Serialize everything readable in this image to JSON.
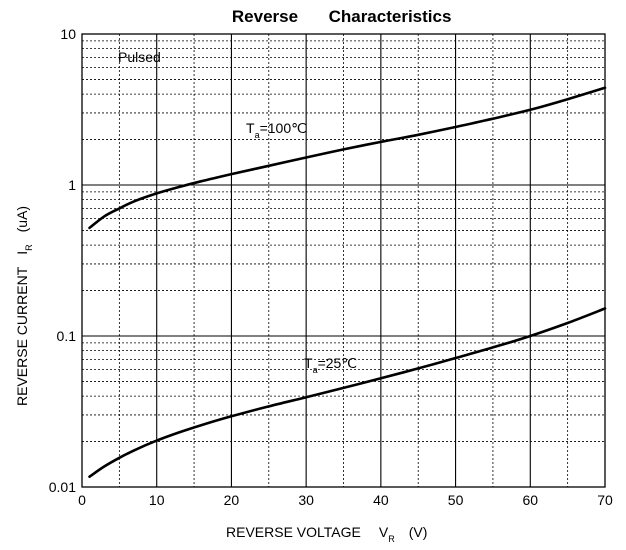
{
  "chart_data": {
    "type": "line",
    "title_left": "Reverse",
    "title_right": "Characteristics",
    "xlabel": "REVERSE VOLTAGE",
    "xlabel_symbol": "V",
    "xlabel_sub": "R",
    "xlabel_unit": "(V)",
    "ylabel": "REVERSE CURRENT",
    "ylabel_symbol": "I",
    "ylabel_sub": "R",
    "ylabel_unit": "(uA)",
    "xlim": [
      0,
      70
    ],
    "ylim": [
      0.01,
      10
    ],
    "y_scale": "log",
    "grid": true,
    "x_ticks": [
      "0",
      "10",
      "20",
      "30",
      "40",
      "50",
      "60",
      "70"
    ],
    "y_ticks": [
      "0.01",
      "0.1",
      "1",
      "10"
    ],
    "annotation": "Pulsed",
    "series": [
      {
        "label_main": "T",
        "label_sub": "a",
        "label_value": "=100℃",
        "x": [
          1,
          3,
          5,
          7,
          10,
          13,
          16,
          20,
          25,
          30,
          35,
          40,
          45,
          50,
          55,
          60,
          65,
          70
        ],
        "y": [
          0.52,
          0.62,
          0.7,
          0.78,
          0.88,
          0.97,
          1.06,
          1.18,
          1.34,
          1.52,
          1.72,
          1.93,
          2.15,
          2.42,
          2.75,
          3.15,
          3.7,
          4.4
        ]
      },
      {
        "label_main": "T",
        "label_sub": "a",
        "label_value": "=25℃",
        "x": [
          1,
          3,
          5,
          7,
          10,
          13,
          16,
          20,
          25,
          30,
          35,
          40,
          45,
          50,
          55,
          60,
          65,
          70
        ],
        "y": [
          0.0117,
          0.0137,
          0.0156,
          0.0175,
          0.0203,
          0.023,
          0.0257,
          0.0294,
          0.0342,
          0.0393,
          0.0453,
          0.0525,
          0.061,
          0.0715,
          0.084,
          0.1,
          0.122,
          0.152
        ]
      }
    ]
  }
}
